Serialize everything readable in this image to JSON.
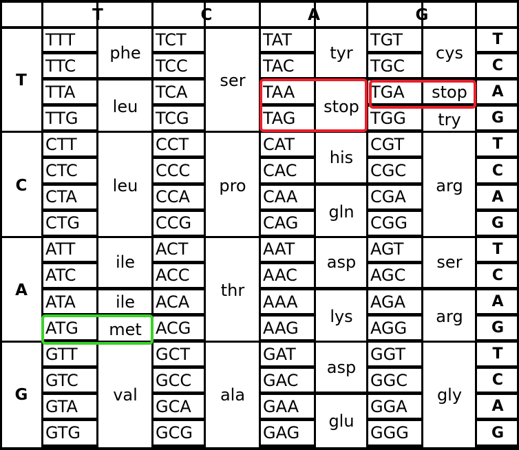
{
  "headers": [
    "T",
    "C",
    "A",
    "G"
  ],
  "third_bases": [
    "T",
    "C",
    "A",
    "G"
  ],
  "rows": [
    {
      "base": "T",
      "blocks": [
        {
          "codons": [
            "TTT",
            "TTC",
            "TTA",
            "TTG"
          ],
          "aa": [
            {
              "name": "phe",
              "span": [
                0,
                1
              ]
            },
            {
              "name": "leu",
              "span": [
                2,
                3
              ]
            }
          ]
        },
        {
          "codons": [
            "TCT",
            "TCC",
            "TCA",
            "TCG"
          ],
          "aa": [
            {
              "name": "ser",
              "span": [
                0,
                3
              ]
            }
          ]
        },
        {
          "codons": [
            "TAT",
            "TAC",
            "TAA",
            "TAG"
          ],
          "aa": [
            {
              "name": "tyr",
              "span": [
                0,
                1
              ]
            },
            {
              "name": "stop",
              "span": [
                2,
                3
              ]
            }
          ]
        },
        {
          "codons": [
            "TGT",
            "TGC",
            "TGA",
            "TGG"
          ],
          "aa": [
            {
              "name": "cys",
              "span": [
                0,
                1
              ]
            },
            {
              "name": "stop",
              "span": [
                2,
                2
              ]
            },
            {
              "name": "try",
              "span": [
                3,
                3
              ]
            }
          ]
        }
      ]
    },
    {
      "base": "C",
      "blocks": [
        {
          "codons": [
            "CTT",
            "CTC",
            "CTA",
            "CTG"
          ],
          "aa": [
            {
              "name": "leu",
              "span": [
                0,
                3
              ]
            }
          ]
        },
        {
          "codons": [
            "CCT",
            "CCC",
            "CCA",
            "CCG"
          ],
          "aa": [
            {
              "name": "pro",
              "span": [
                0,
                3
              ]
            }
          ]
        },
        {
          "codons": [
            "CAT",
            "CAC",
            "CAA",
            "CAG"
          ],
          "aa": [
            {
              "name": "his",
              "span": [
                0,
                1
              ]
            },
            {
              "name": "gln",
              "span": [
                2,
                3
              ]
            }
          ]
        },
        {
          "codons": [
            "CGT",
            "CGC",
            "CGA",
            "CGG"
          ],
          "aa": [
            {
              "name": "arg",
              "span": [
                0,
                3
              ]
            }
          ]
        }
      ]
    },
    {
      "base": "A",
      "blocks": [
        {
          "codons": [
            "ATT",
            "ATC",
            "ATA",
            "ATG"
          ],
          "aa": [
            {
              "name": "ile",
              "span": [
                0,
                1
              ]
            },
            {
              "name": "ile",
              "span": [
                2,
                2
              ]
            },
            {
              "name": "met",
              "span": [
                3,
                3
              ]
            }
          ]
        },
        {
          "codons": [
            "ACT",
            "ACC",
            "ACA",
            "ACG"
          ],
          "aa": [
            {
              "name": "thr",
              "span": [
                0,
                3
              ]
            }
          ]
        },
        {
          "codons": [
            "AAT",
            "AAC",
            "AAA",
            "AAG"
          ],
          "aa": [
            {
              "name": "asp",
              "span": [
                0,
                1
              ]
            },
            {
              "name": "lys",
              "span": [
                2,
                3
              ]
            }
          ]
        },
        {
          "codons": [
            "AGT",
            "AGC",
            "AGA",
            "AGG"
          ],
          "aa": [
            {
              "name": "ser",
              "span": [
                0,
                1
              ]
            },
            {
              "name": "arg",
              "span": [
                2,
                3
              ]
            }
          ]
        }
      ]
    },
    {
      "base": "G",
      "blocks": [
        {
          "codons": [
            "GTT",
            "GTC",
            "GTA",
            "GTG"
          ],
          "aa": [
            {
              "name": "val",
              "span": [
                0,
                3
              ]
            }
          ]
        },
        {
          "codons": [
            "GCT",
            "GCC",
            "GCA",
            "GCG"
          ],
          "aa": [
            {
              "name": "ala",
              "span": [
                0,
                3
              ]
            }
          ]
        },
        {
          "codons": [
            "GAT",
            "GAC",
            "GAA",
            "GAG"
          ],
          "aa": [
            {
              "name": "asp",
              "span": [
                0,
                1
              ]
            },
            {
              "name": "glu",
              "span": [
                2,
                3
              ]
            }
          ]
        },
        {
          "codons": [
            "GGT",
            "GGC",
            "GGA",
            "GGG"
          ],
          "aa": [
            {
              "name": "gly",
              "span": [
                0,
                3
              ]
            }
          ]
        }
      ]
    }
  ],
  "highlights": {
    "stop_color": "#e8202a",
    "start_color": "#3ad12a",
    "stop_codons": [
      "TAA",
      "TAG",
      "TGA"
    ],
    "start_codon": "ATG"
  }
}
